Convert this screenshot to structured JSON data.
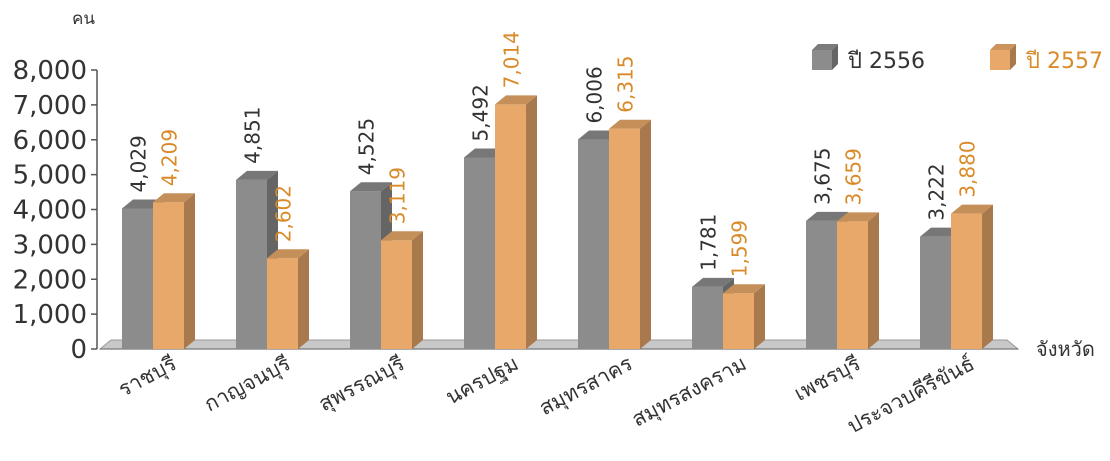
{
  "chart_data": {
    "type": "bar",
    "title": "",
    "ylabel": "คน",
    "xlabel": "จังหวัด",
    "ylim": [
      0,
      8000
    ],
    "yticks": [
      0,
      1000,
      2000,
      3000,
      4000,
      5000,
      6000,
      7000,
      8000
    ],
    "ytick_labels": [
      "0",
      "1,000",
      "2,000",
      "3,000",
      "4,000",
      "5,000",
      "6,000",
      "7,000",
      "8,000"
    ],
    "grid": false,
    "legend_position": "top-right",
    "categories": [
      "ราชบุรี",
      "กาญจนบุรี",
      "สุพรรณบุรี",
      "นครปฐม",
      "สมุทรสาคร",
      "สมุทรสงคราม",
      "เพชรบุรี",
      "ประจวบคีรีขันธ์"
    ],
    "series": [
      {
        "name": "ปี 2556",
        "color": "#8c8c8c",
        "values": [
          4029,
          4851,
          4525,
          5492,
          6006,
          1781,
          3675,
          3222
        ],
        "labels": [
          "4,029",
          "4,851",
          "4,525",
          "5,492",
          "6,006",
          "1,781",
          "3,675",
          "3,222"
        ]
      },
      {
        "name": "ปี 2557",
        "color": "#e8a869",
        "values": [
          4209,
          2602,
          3119,
          7014,
          6315,
          1599,
          3659,
          3880
        ],
        "labels": [
          "4,209",
          "2,602",
          "3,119",
          "7,014",
          "6,315",
          "1,599",
          "3,659",
          "3,880"
        ]
      }
    ]
  }
}
